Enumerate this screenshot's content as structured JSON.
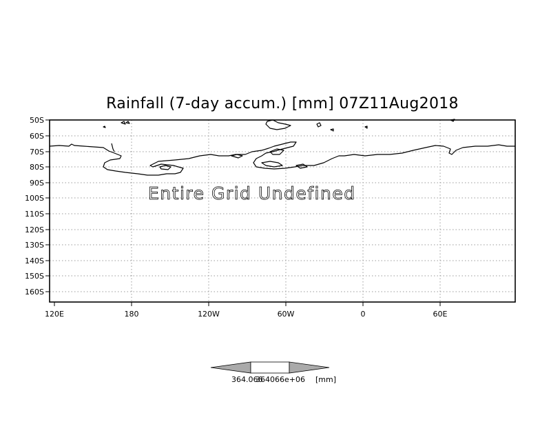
{
  "map": {
    "title": "Rainfall (7-day accum.) [mm] 07Z11Aug2018",
    "message": "Entire Grid Undefined",
    "lat_labels": [
      "50S",
      "60S",
      "70S",
      "80S",
      "90S",
      "100S",
      "110S",
      "120S",
      "130S",
      "140S",
      "150S",
      "160S"
    ],
    "lon_labels": [
      "120E",
      "180",
      "120W",
      "60W",
      "0",
      "60E"
    ]
  },
  "colorbar": {
    "label_value_1": "364.066",
    "label_value_2": "364066e+06",
    "unit": "[mm]",
    "colors": {
      "ends": "#aaaaaa",
      "middle": "#ffffff"
    }
  },
  "colors": {
    "frame": "#000000",
    "grid": "#999999",
    "coast": "#000000"
  }
}
